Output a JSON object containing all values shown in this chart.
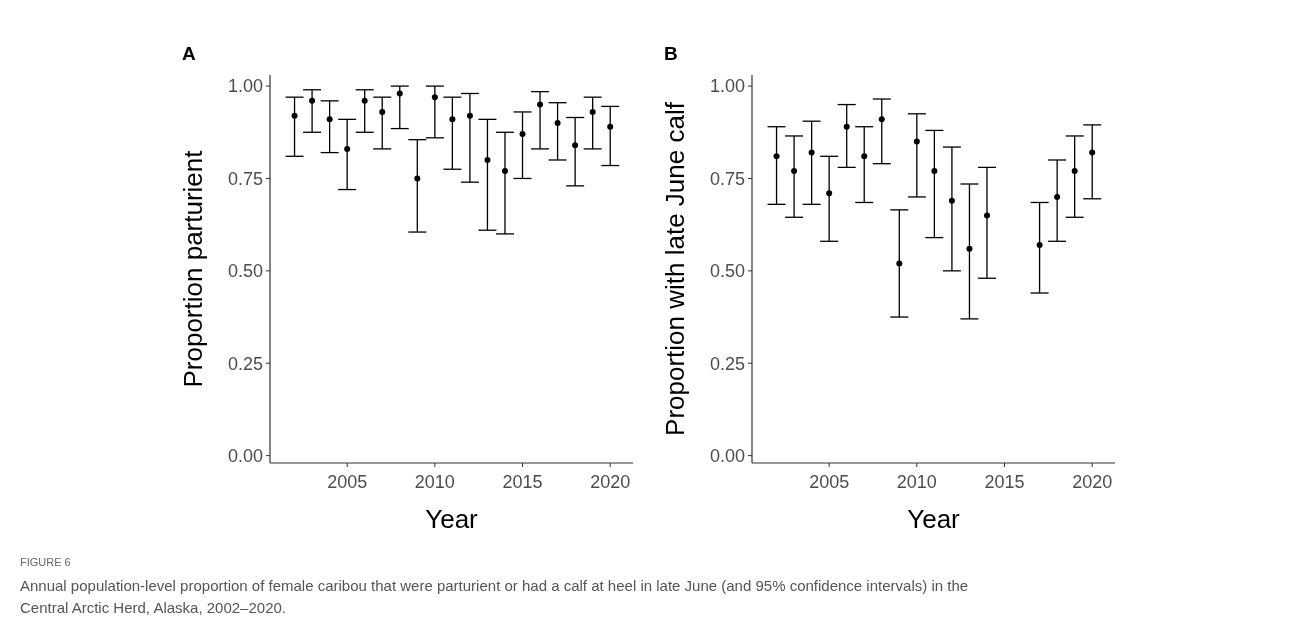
{
  "chart_data": [
    {
      "type": "scatter",
      "title": "A",
      "xlabel": "Year",
      "ylabel": "Proportion parturient",
      "x": [
        2002,
        2003,
        2004,
        2005,
        2006,
        2007,
        2008,
        2009,
        2010,
        2011,
        2012,
        2013,
        2014,
        2015,
        2016,
        2017,
        2018,
        2019,
        2020
      ],
      "series": [
        {
          "color": "#000000",
          "values": [
            0.92,
            0.96,
            0.91,
            0.83,
            0.96,
            0.93,
            0.98,
            0.75,
            0.97,
            0.91,
            0.92,
            0.8,
            0.77,
            0.87,
            0.95,
            0.9,
            0.84,
            0.93,
            0.89
          ],
          "errors": [
            [
              0.81,
              0.97
            ],
            [
              0.875,
              0.99
            ],
            [
              0.82,
              0.96
            ],
            [
              0.72,
              0.91
            ],
            [
              0.875,
              0.99
            ],
            [
              0.83,
              0.97
            ],
            [
              0.885,
              1.0
            ],
            [
              0.605,
              0.855
            ],
            [
              0.86,
              1.0
            ],
            [
              0.775,
              0.97
            ],
            [
              0.74,
              0.98
            ],
            [
              0.61,
              0.91
            ],
            [
              0.6,
              0.875
            ],
            [
              0.75,
              0.93
            ],
            [
              0.83,
              0.985
            ],
            [
              0.8,
              0.955
            ],
            [
              0.73,
              0.915
            ],
            [
              0.83,
              0.97
            ],
            [
              0.785,
              0.945
            ]
          ]
        }
      ],
      "xlim": [
        2000.6,
        2021.3
      ],
      "xticks": [
        2005,
        2010,
        2015,
        2020
      ],
      "ylim": [
        -0.02,
        1.03
      ],
      "yticks": [
        {
          "value": 0,
          "label": "0.00"
        },
        {
          "value": 0.25,
          "label": "0.25"
        },
        {
          "value": 0.5,
          "label": "0.50"
        },
        {
          "value": 0.75,
          "label": "0.75"
        },
        {
          "value": 1,
          "label": "1.00"
        }
      ],
      "grid": false,
      "marker": "circle"
    },
    {
      "type": "scatter",
      "title": "B",
      "xlabel": "Year",
      "ylabel": "Proportion with late June calf",
      "x": [
        2002,
        2003,
        2004,
        2005,
        2006,
        2007,
        2008,
        2009,
        2010,
        2011,
        2012,
        2013,
        2014,
        2017,
        2018,
        2019,
        2020
      ],
      "series": [
        {
          "color": "#000000",
          "values": [
            0.81,
            0.77,
            0.82,
            0.71,
            0.89,
            0.81,
            0.91,
            0.52,
            0.85,
            0.77,
            0.69,
            0.56,
            0.65,
            0.57,
            0.7,
            0.77,
            0.82
          ],
          "errors": [
            [
              0.68,
              0.89
            ],
            [
              0.645,
              0.865
            ],
            [
              0.68,
              0.905
            ],
            [
              0.58,
              0.81
            ],
            [
              0.78,
              0.95
            ],
            [
              0.685,
              0.89
            ],
            [
              0.79,
              0.965
            ],
            [
              0.375,
              0.665
            ],
            [
              0.7,
              0.925
            ],
            [
              0.59,
              0.88
            ],
            [
              0.5,
              0.835
            ],
            [
              0.37,
              0.735
            ],
            [
              0.48,
              0.78
            ],
            [
              0.44,
              0.685
            ],
            [
              0.58,
              0.8
            ],
            [
              0.645,
              0.865
            ],
            [
              0.695,
              0.895
            ]
          ]
        }
      ],
      "xlim": [
        2000.6,
        2021.3
      ],
      "xticks": [
        2005,
        2010,
        2015,
        2020
      ],
      "ylim": [
        -0.02,
        1.03
      ],
      "yticks": [
        {
          "value": 0,
          "label": "0.00"
        },
        {
          "value": 0.25,
          "label": "0.25"
        },
        {
          "value": 0.5,
          "label": "0.50"
        },
        {
          "value": 0.75,
          "label": "0.75"
        },
        {
          "value": 1,
          "label": "1.00"
        }
      ],
      "grid": false,
      "marker": "circle",
      "annotations": [
        "FIGURE 6",
        "Annual population-level proportion of female caribou that were parturient or had a calf at heel in late June (and 95% confidence intervals) in the Central Arctic Herd, Alaska, 2002–2020."
      ]
    }
  ]
}
